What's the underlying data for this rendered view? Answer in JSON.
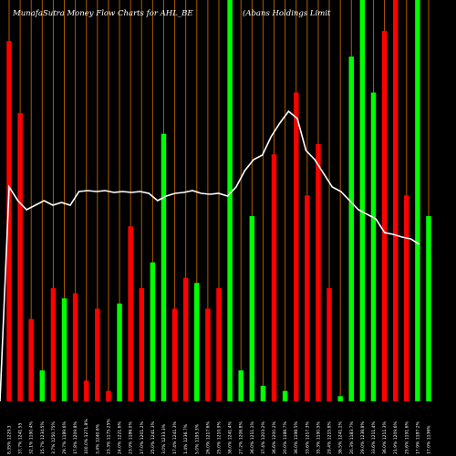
{
  "header": {
    "left_title": "MunafaSutra  Money Flow  Charts for AHL_BE",
    "right_title": "(Abans Holdings Limit"
  },
  "colors": {
    "background": "#000000",
    "up": "#00ff00",
    "down": "#ff0000",
    "line": "#ffffff",
    "vgrid": "#b05a00"
  },
  "chart_data": {
    "type": "bar",
    "series": [
      {
        "type": "bar",
        "values": [
          350,
          280,
          80,
          30,
          110,
          100,
          105,
          20,
          90,
          10,
          95,
          170,
          110,
          135,
          260,
          90,
          120,
          115,
          90,
          110,
          390,
          30,
          180,
          15,
          240,
          10,
          300,
          200,
          250,
          110,
          5,
          335,
          390,
          300,
          360,
          390,
          200,
          390,
          180
        ],
        "directions": [
          "down",
          "down",
          "down",
          "up",
          "down",
          "up",
          "down",
          "down",
          "down",
          "down",
          "up",
          "down",
          "down",
          "up",
          "up",
          "down",
          "down",
          "up",
          "down",
          "down",
          "up",
          "up",
          "up",
          "up",
          "down",
          "up",
          "down",
          "down",
          "down",
          "down",
          "up",
          "up",
          "up",
          "up",
          "down",
          "down",
          "down",
          "up",
          "up"
        ]
      },
      {
        "type": "line",
        "values": [
          235,
          220,
          210,
          215,
          220,
          215,
          218,
          215,
          230,
          231,
          230,
          231,
          229,
          230,
          229,
          230,
          228,
          220,
          225,
          228,
          229,
          231,
          228,
          227,
          228,
          225,
          235,
          253,
          265,
          270,
          290,
          305,
          318,
          310,
          275,
          265,
          250,
          235,
          230,
          220,
          210,
          205,
          200,
          185,
          183,
          180,
          178,
          172
        ]
      }
    ],
    "x_labels": [
      "8.35% 1229.3",
      "37.7% 1241.55",
      "32.1% 1190.4%",
      "15.7% 1234.5%",
      "3.7% 1250.75%",
      "29.7% 1189.6%",
      "17.8% 1209.8%",
      "100.0% 1271.8%",
      "3.4% 1240.6%",
      "23.3% 1175.25%",
      "24.0% 1221.6%",
      "23.9% 1186.0%",
      "17.0% 1201.2%",
      "25.0% 1241.3%",
      "3.0% 1233.3%",
      "17.4% 1241.3%",
      "1.4% 1236.7%",
      "5.0% 1195.3%",
      "26.0% 1217.6%",
      "25.0% 1210.9%",
      "36.0% 1241.4%",
      "27.2% 1206.8%",
      "36.0% 1211.1%",
      "37.4% 1203.2%",
      "36.6% 1200.2%",
      "20.0% 1188.7%",
      "36.0% 1198.5%",
      "33.6% 1217.3%",
      "35.3% 1190.5%",
      "29.4% 1215.8%",
      "36.5% 1241.1%",
      "20.3% 1183.7%",
      "29.0% 1238.8%",
      "33.6% 1211.4%",
      "36.0% 1211.3%",
      "21.9% 1209.6%",
      "25.6% 1191.6%",
      "17.9% 1187.2%",
      "17.0% 1136%"
    ]
  }
}
